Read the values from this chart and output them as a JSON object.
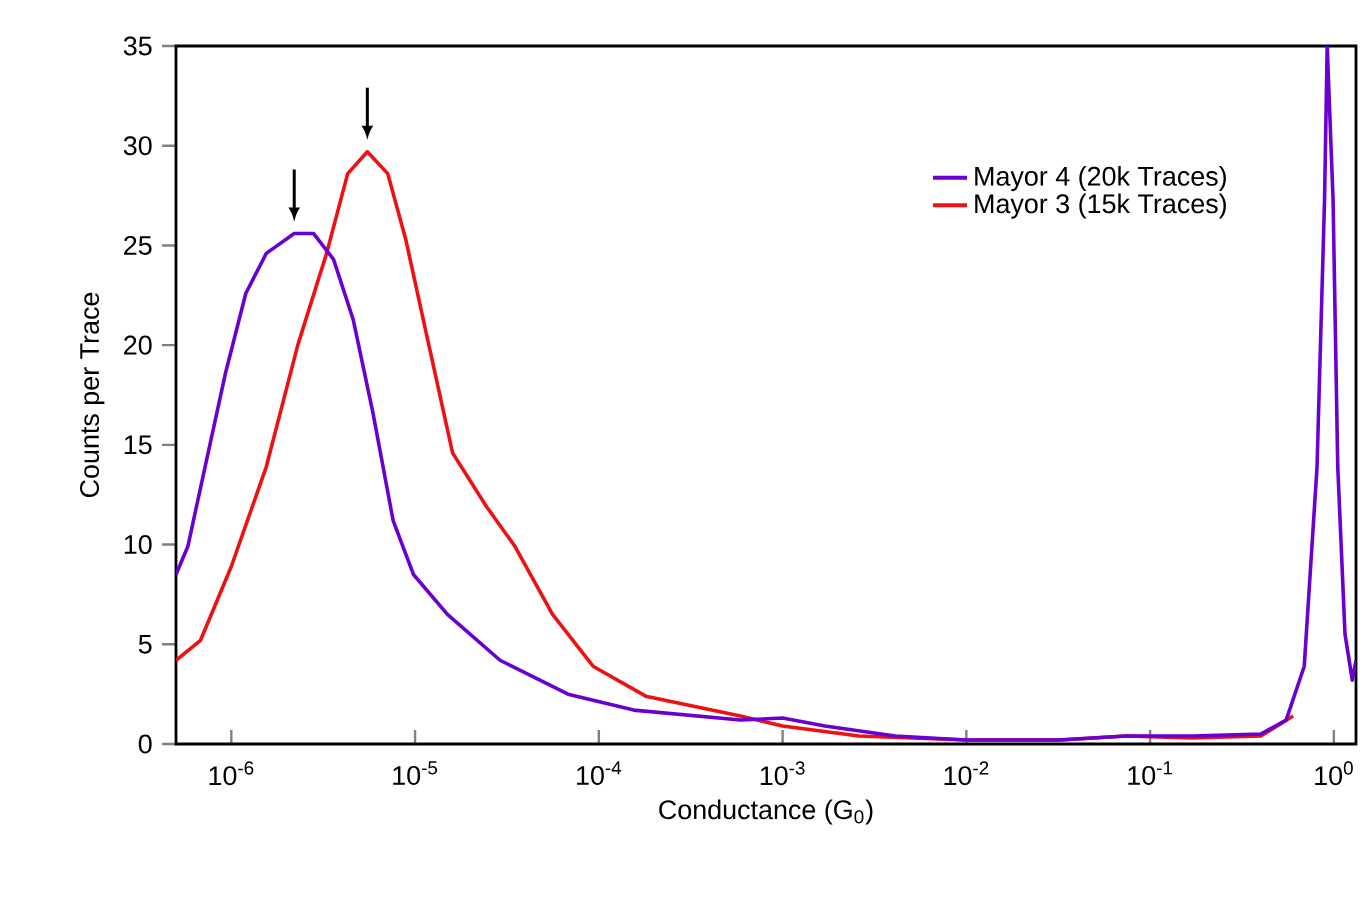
{
  "chart_data": {
    "type": "line",
    "xlabel": "Conductance (G$_{0}$)",
    "ylabel": "Counts per Trace",
    "log": "x",
    "xlim": [
      5e-07,
      1.32
    ],
    "ylim": [
      0,
      35
    ],
    "xticks": [
      {
        "value": 1e-06,
        "label": "10$^{-6}$"
      },
      {
        "value": 1e-05,
        "label": "10$^{-5}$"
      },
      {
        "value": 0.0001,
        "label": "10$^{-4}$"
      },
      {
        "value": 0.001,
        "label": "10$^{-3}$"
      },
      {
        "value": 0.01,
        "label": "10$^{-2}$"
      },
      {
        "value": 0.1,
        "label": "10$^{-1}$"
      },
      {
        "value": 1,
        "label": "10$^{0}$"
      }
    ],
    "yticks": [
      0,
      5,
      10,
      15,
      20,
      25,
      30,
      35
    ],
    "legend": "top right",
    "grid": false,
    "marker": "none",
    "line_style": "solid",
    "series": [
      {
        "name": "Mayor 4 (20k Traces)",
        "color": "#6a00d0",
        "x": [
          5e-07,
          5.8e-07,
          7.2e-07,
          9.3e-07,
          1.2e-06,
          1.55e-06,
          2.2e-06,
          2.8e-06,
          3.6e-06,
          4.6e-06,
          5.9e-06,
          7.6e-06,
          9.8e-06,
          1.5e-05,
          2.9e-05,
          6.8e-05,
          0.000155,
          0.00059,
          0.001,
          0.0017,
          0.0041,
          0.01,
          0.032,
          0.074,
          0.17,
          0.4,
          0.55,
          0.69,
          0.81,
          0.89,
          0.92,
          0.99,
          1.05,
          1.15,
          1.26,
          1.32
        ],
        "values": [
          8.5,
          9.9,
          13.9,
          18.6,
          22.6,
          24.6,
          25.6,
          25.6,
          24.3,
          21.3,
          16.6,
          11.2,
          8.5,
          6.5,
          4.2,
          2.5,
          1.7,
          1.2,
          1.3,
          0.9,
          0.4,
          0.2,
          0.2,
          0.4,
          0.4,
          0.5,
          1.2,
          3.9,
          13.9,
          27.3,
          35,
          27.3,
          13.9,
          5.5,
          3.2,
          4.2
        ]
      },
      {
        "name": "Mayor 3 (15k Traces)",
        "color": "#ee1111",
        "x": [
          5e-07,
          6.8e-07,
          1e-06,
          1.55e-06,
          2.3e-06,
          3.3e-06,
          4.3e-06,
          5.5e-06,
          7.1e-06,
          8.9e-06,
          1.15e-05,
          1.6e-05,
          2.45e-05,
          3.5e-05,
          5.6e-05,
          9.3e-05,
          0.00018,
          0.00059,
          0.001,
          0.0026,
          0.01,
          0.032,
          0.074,
          0.17,
          0.4,
          0.6
        ],
        "values": [
          4.2,
          5.2,
          8.9,
          13.9,
          20.0,
          24.6,
          28.6,
          29.7,
          28.6,
          25.3,
          20.6,
          14.6,
          11.9,
          9.9,
          6.5,
          3.9,
          2.4,
          1.4,
          0.9,
          0.4,
          0.2,
          0.2,
          0.4,
          0.3,
          0.4,
          1.4
        ]
      }
    ]
  }
}
